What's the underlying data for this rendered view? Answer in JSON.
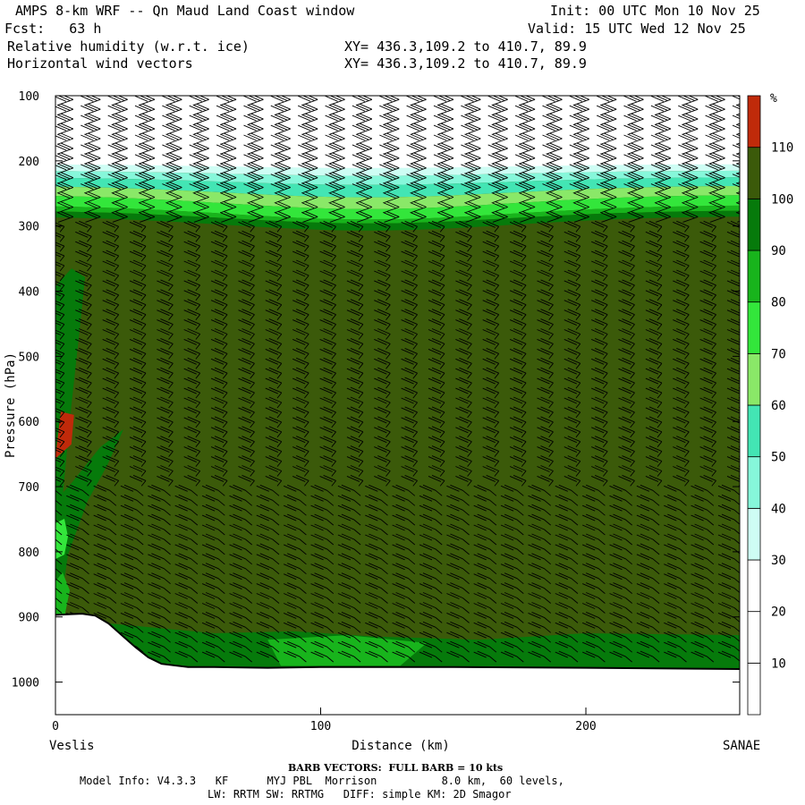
{
  "header": {
    "title": "AMPS 8-km WRF -- Qn Maud Land Coast window",
    "init": "Init: 00 UTC Mon 10 Nov 25",
    "fcst": "Fcst:   63 h",
    "valid": "Valid: 15 UTC Wed 12 Nov 25",
    "field1": "Relative humidity (w.r.t. ice)",
    "field1_xy": "XY= 436.3,109.2 to 410.7, 89.9",
    "field2": "Horizontal wind vectors",
    "field2_xy": "XY= 436.3,109.2 to 410.7, 89.9"
  },
  "chart_data": {
    "type": "heatmap",
    "title": "Relative humidity (w.r.t. ice)",
    "xlabel": "Distance (km)",
    "ylabel": "Pressure (hPa)",
    "xlim": [
      0,
      258
    ],
    "ylim": [
      1050,
      100
    ],
    "x_ticks": [
      0,
      100,
      200
    ],
    "y_ticks": [
      100,
      200,
      300,
      400,
      500,
      600,
      700,
      800,
      900,
      1000
    ],
    "x_end_labels": {
      "left": "Veslis",
      "right": "SANAE"
    },
    "colorbar": {
      "unit": "%",
      "levels": [
        10,
        20,
        30,
        40,
        50,
        60,
        70,
        80,
        90,
        100,
        110
      ],
      "colors": [
        "#ffffff",
        "#ffffff",
        "#ffffff",
        "#cefdf4",
        "#86f7da",
        "#43e5b4",
        "#8ae868",
        "#33e63b",
        "#18b41c",
        "#067a0b",
        "#3b5a0a",
        "#c02a0a"
      ]
    },
    "rh_regions": [
      {
        "name": "upper dry layer",
        "rh": "<30",
        "p_range": [
          100,
          205
        ]
      },
      {
        "name": "tropopause gradient",
        "rh": "30-90",
        "p_range": [
          205,
          285
        ]
      },
      {
        "name": "bulk troposphere",
        "rh": "100-110",
        "p_range": [
          285,
          900
        ]
      },
      {
        "name": "lower boundary layer",
        "rh": "90-100",
        "p_range": [
          920,
          975
        ]
      },
      {
        "name": "supersaturated pocket",
        "rh": ">110",
        "x_range": [
          0,
          7
        ],
        "p_range": [
          585,
          655
        ]
      }
    ],
    "terrain_surface": {
      "x": [
        0,
        5,
        10,
        15,
        20,
        25,
        30,
        35,
        40,
        50,
        60,
        80,
        100,
        150,
        200,
        258
      ],
      "p": [
        897,
        896,
        895,
        898,
        910,
        928,
        946,
        962,
        972,
        977,
        977,
        978,
        977,
        977,
        978,
        980
      ]
    }
  },
  "footer": {
    "barb_note": "BARB VECTORS:  FULL BARB = 10 kts",
    "model_info": "Model Info: V4.3.3   KF      MYJ PBL  Morrison          8.0 km,  60 levels,",
    "physics": "LW: RRTM SW: RRTMG   DIFF: simple KM: 2D Smagor"
  }
}
